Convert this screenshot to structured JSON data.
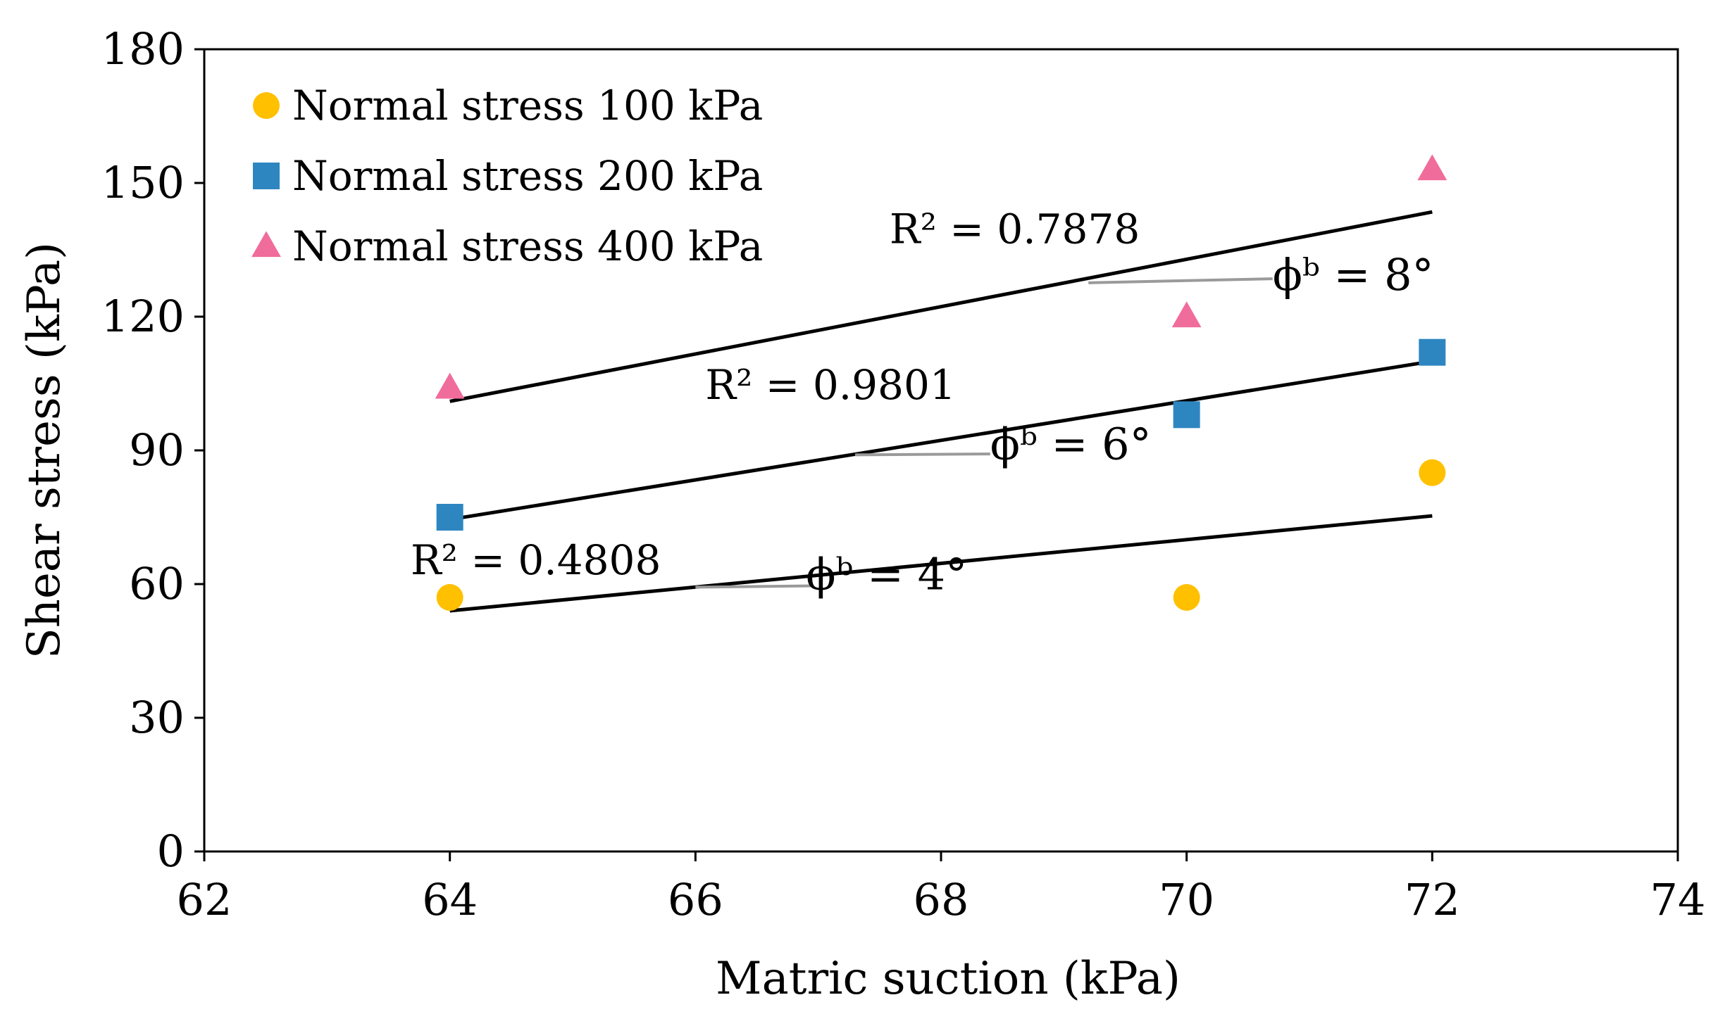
{
  "chart_data": {
    "type": "scatter",
    "title": "",
    "xlabel": "Matric suction (kPa)",
    "ylabel": "Shear stress (kPa)",
    "xlim": [
      62,
      74
    ],
    "ylim": [
      0,
      180
    ],
    "xticks": [
      62,
      64,
      66,
      68,
      70,
      72,
      74
    ],
    "yticks": [
      0,
      30,
      60,
      90,
      120,
      150,
      180
    ],
    "grid": false,
    "legend_position": "top-left",
    "series": [
      {
        "name": "Normal stress  100 kPa",
        "marker": "circle",
        "color": "#FFC000",
        "points": [
          {
            "x": 64,
            "y": 57
          },
          {
            "x": 70,
            "y": 57
          },
          {
            "x": 72,
            "y": 85
          }
        ],
        "trendline": {
          "x": [
            64,
            72
          ],
          "y": [
            54,
            75.3
          ]
        },
        "r2_label": "R² = 0.4808",
        "phi_label": "ϕᵇ = 4°"
      },
      {
        "name": "Normal stress  200 kPa",
        "marker": "square",
        "color": "#2E86C1",
        "points": [
          {
            "x": 64,
            "y": 75
          },
          {
            "x": 70,
            "y": 98
          },
          {
            "x": 72,
            "y": 112
          }
        ],
        "trendline": {
          "x": [
            64,
            72
          ],
          "y": [
            74.5,
            110
          ]
        },
        "r2_label": "R² = 0.9801",
        "phi_label": "ϕᵇ = 6°"
      },
      {
        "name": "Normal stress  400 kPa",
        "marker": "triangle",
        "color": "#F06C9B",
        "points": [
          {
            "x": 64,
            "y": 104
          },
          {
            "x": 70,
            "y": 120
          },
          {
            "x": 72,
            "y": 153
          }
        ],
        "trendline": {
          "x": [
            64,
            72
          ],
          "y": [
            101,
            143.5
          ]
        },
        "r2_label": "R² = 0.7878",
        "phi_label": "ϕᵇ = 8°"
      }
    ]
  },
  "colors": {
    "axis": "#000000",
    "trendline": "#000000",
    "leader": "#9a9a9a"
  }
}
